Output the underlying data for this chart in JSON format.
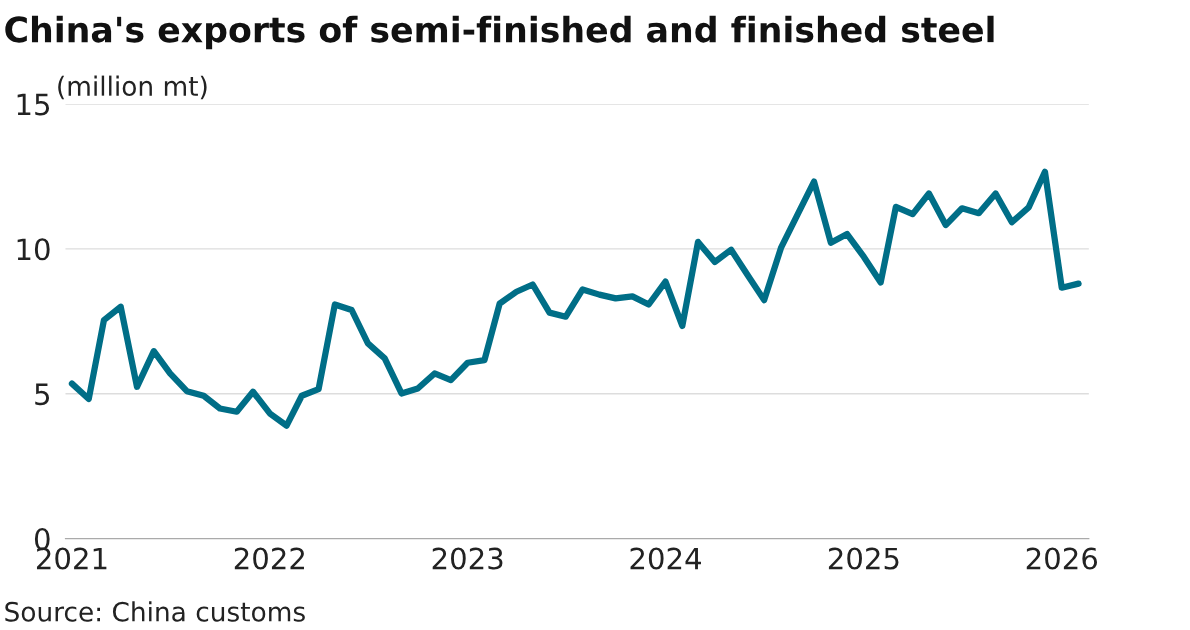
{
  "chart_data": {
    "type": "line",
    "title": "China's exports of semi-finished and finished steel",
    "ylabel": "(million mt)",
    "annotations": [
      "Source: China customs"
    ],
    "x": [
      "2021-01",
      "2021-02",
      "2021-03",
      "2021-04",
      "2021-05",
      "2021-06",
      "2021-07",
      "2021-08",
      "2021-09",
      "2021-10",
      "2021-11",
      "2021-12",
      "2022-01",
      "2022-02",
      "2022-03",
      "2022-04",
      "2022-05",
      "2022-06",
      "2022-07",
      "2022-08",
      "2022-09",
      "2022-10",
      "2022-11",
      "2022-12",
      "2023-01",
      "2023-02",
      "2023-03",
      "2023-04",
      "2023-05",
      "2023-06",
      "2023-07",
      "2023-08",
      "2023-09",
      "2023-10",
      "2023-11",
      "2023-12",
      "2024-01",
      "2024-02",
      "2024-03",
      "2024-04",
      "2024-05",
      "2024-06",
      "2024-07",
      "2024-08",
      "2024-09",
      "2024-10",
      "2024-11",
      "2024-12",
      "2025-01",
      "2025-02",
      "2025-03",
      "2025-04",
      "2025-05",
      "2025-06",
      "2025-07",
      "2025-08",
      "2025-09",
      "2025-10",
      "2025-11",
      "2025-12",
      "2026-01",
      "2026-02"
    ],
    "series": [
      {
        "color": "#006e87",
        "values": [
          5.35,
          4.82,
          7.54,
          8.0,
          5.24,
          6.47,
          5.7,
          5.09,
          4.93,
          4.49,
          4.38,
          5.07,
          4.32,
          3.9,
          4.93,
          5.16,
          8.08,
          7.89,
          6.74,
          6.22,
          5.01,
          5.18,
          5.7,
          5.47,
          6.07,
          6.16,
          8.11,
          8.52,
          8.77,
          7.8,
          7.66,
          8.6,
          8.42,
          8.29,
          8.36,
          8.08,
          8.87,
          7.34,
          10.24,
          9.55,
          9.97,
          9.08,
          8.23,
          10.03,
          11.2,
          12.32,
          10.21,
          10.51,
          9.72,
          8.84,
          11.45,
          11.2,
          11.91,
          10.82,
          11.4,
          11.23,
          11.91,
          10.92,
          11.43,
          12.66,
          8.66,
          8.8
        ]
      }
    ],
    "xlim": [
      "2020-12-20",
      "2026-02-20"
    ],
    "xticks": [
      "2021",
      "2022",
      "2023",
      "2024",
      "2025",
      "2026"
    ],
    "ylim": [
      0,
      15
    ],
    "yticks": [
      0,
      5,
      10,
      15
    ],
    "grid": "y",
    "legend": false,
    "marker": "none",
    "line_style": "solid"
  }
}
